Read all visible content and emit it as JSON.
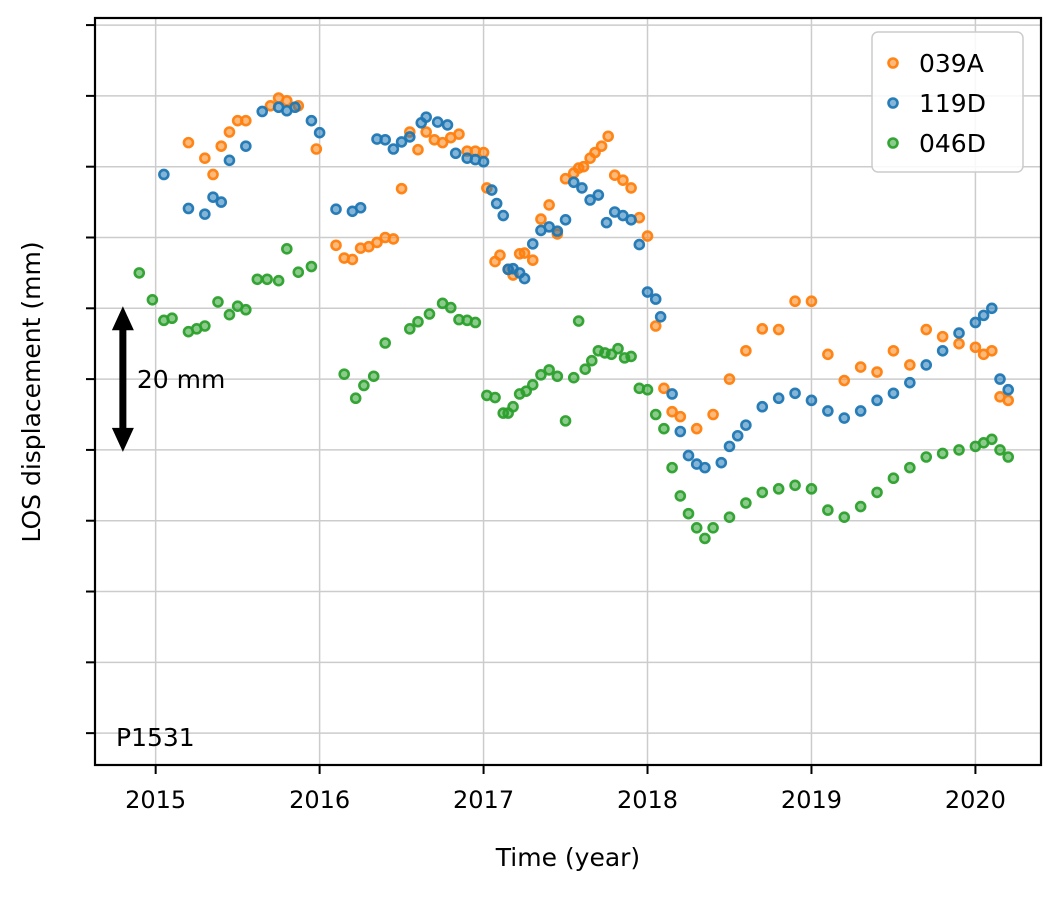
{
  "chart_data": {
    "type": "scatter",
    "xlabel": "Time (year)",
    "ylabel": "LOS displacement (mm)",
    "xlim": [
      2014.63,
      2020.4
    ],
    "ylim": [
      -89.5,
      16
    ],
    "x_ticks": [
      2015,
      2016,
      2017,
      2018,
      2019,
      2020
    ],
    "x_tick_labels": [
      "2015",
      "2016",
      "2017",
      "2018",
      "2019",
      "2020"
    ],
    "y_ticks": [
      -85,
      -75,
      -65,
      -55,
      -45,
      -35,
      -25,
      -15,
      -5,
      5,
      15
    ],
    "y_tick_labels_shown": false,
    "grid": true,
    "legend_position": "top-right",
    "annotation_text": "P1531",
    "scale_bar": {
      "label": "20 mm",
      "y_from": -45,
      "y_to": -25,
      "x": 2014.8
    },
    "series": [
      {
        "name": "039A",
        "color": "#ff7f0e",
        "points": [
          [
            2015.2,
            -1.6
          ],
          [
            2015.3,
            -3.8
          ],
          [
            2015.35,
            -6.1
          ],
          [
            2015.4,
            -2.1
          ],
          [
            2015.45,
            -0.1
          ],
          [
            2015.5,
            1.5
          ],
          [
            2015.55,
            1.5
          ],
          [
            2015.7,
            3.6
          ],
          [
            2015.75,
            4.7
          ],
          [
            2015.8,
            4.3
          ],
          [
            2015.87,
            3.6
          ],
          [
            2015.98,
            -2.5
          ],
          [
            2016.1,
            -16.1
          ],
          [
            2016.15,
            -17.9
          ],
          [
            2016.2,
            -18.1
          ],
          [
            2016.25,
            -16.5
          ],
          [
            2016.3,
            -16.3
          ],
          [
            2016.35,
            -15.7
          ],
          [
            2016.4,
            -15.0
          ],
          [
            2016.45,
            -15.2
          ],
          [
            2016.5,
            -8.1
          ],
          [
            2016.55,
            -0.1
          ],
          [
            2016.6,
            -2.6
          ],
          [
            2016.65,
            -0.1
          ],
          [
            2016.7,
            -1.2
          ],
          [
            2016.75,
            -1.6
          ],
          [
            2016.8,
            -0.9
          ],
          [
            2016.85,
            -0.4
          ],
          [
            2016.9,
            -2.8
          ],
          [
            2016.95,
            -2.8
          ],
          [
            2017.0,
            -3.0
          ],
          [
            2017.02,
            -8.0
          ],
          [
            2017.07,
            -18.4
          ],
          [
            2017.1,
            -17.5
          ],
          [
            2017.15,
            -19.5
          ],
          [
            2017.18,
            -20.3
          ],
          [
            2017.22,
            -17.3
          ],
          [
            2017.25,
            -17.2
          ],
          [
            2017.3,
            -18.2
          ],
          [
            2017.35,
            -12.4
          ],
          [
            2017.4,
            -10.4
          ],
          [
            2017.45,
            -14.5
          ],
          [
            2017.5,
            -6.7
          ],
          [
            2017.55,
            -5.9
          ],
          [
            2017.58,
            -5.2
          ],
          [
            2017.61,
            -5.0
          ],
          [
            2017.65,
            -3.8
          ],
          [
            2017.68,
            -3.0
          ],
          [
            2017.72,
            -2.1
          ],
          [
            2017.76,
            -0.7
          ],
          [
            2017.8,
            -6.2
          ],
          [
            2017.85,
            -6.9
          ],
          [
            2017.9,
            -8.0
          ],
          [
            2017.95,
            -12.2
          ],
          [
            2018.0,
            -14.8
          ],
          [
            2018.05,
            -27.5
          ],
          [
            2018.1,
            -36.3
          ],
          [
            2018.15,
            -39.6
          ],
          [
            2018.2,
            -40.3
          ],
          [
            2018.3,
            -42.0
          ],
          [
            2018.4,
            -40.0
          ],
          [
            2018.5,
            -35.0
          ],
          [
            2018.6,
            -31.0
          ],
          [
            2018.7,
            -27.9
          ],
          [
            2018.8,
            -28.0
          ],
          [
            2018.9,
            -24.0
          ],
          [
            2019.0,
            -24.0
          ],
          [
            2019.1,
            -31.5
          ],
          [
            2019.2,
            -35.2
          ],
          [
            2019.3,
            -33.3
          ],
          [
            2019.4,
            -34.0
          ],
          [
            2019.5,
            -31.0
          ],
          [
            2019.6,
            -33.0
          ],
          [
            2019.7,
            -28.0
          ],
          [
            2019.8,
            -29.0
          ],
          [
            2019.9,
            -30.0
          ],
          [
            2020.0,
            -30.5
          ],
          [
            2020.05,
            -31.5
          ],
          [
            2020.1,
            -31.0
          ],
          [
            2020.15,
            -37.5
          ],
          [
            2020.2,
            -38.0
          ]
        ]
      },
      {
        "name": "119D",
        "color": "#1f77b4",
        "points": [
          [
            2015.05,
            -6.1
          ],
          [
            2015.2,
            -10.9
          ],
          [
            2015.3,
            -11.7
          ],
          [
            2015.35,
            -9.3
          ],
          [
            2015.4,
            -10.0
          ],
          [
            2015.45,
            -4.1
          ],
          [
            2015.55,
            -2.1
          ],
          [
            2015.65,
            2.8
          ],
          [
            2015.75,
            3.4
          ],
          [
            2015.8,
            2.9
          ],
          [
            2015.85,
            3.4
          ],
          [
            2015.95,
            1.5
          ],
          [
            2016.0,
            -0.2
          ],
          [
            2016.1,
            -11.0
          ],
          [
            2016.2,
            -11.3
          ],
          [
            2016.25,
            -10.8
          ],
          [
            2016.35,
            -1.1
          ],
          [
            2016.4,
            -1.2
          ],
          [
            2016.45,
            -2.5
          ],
          [
            2016.5,
            -1.5
          ],
          [
            2016.55,
            -0.8
          ],
          [
            2016.62,
            1.2
          ],
          [
            2016.65,
            2.0
          ],
          [
            2016.72,
            1.3
          ],
          [
            2016.78,
            0.9
          ],
          [
            2016.83,
            -3.1
          ],
          [
            2016.9,
            -3.8
          ],
          [
            2016.95,
            -4.0
          ],
          [
            2017.0,
            -4.3
          ],
          [
            2017.05,
            -8.3
          ],
          [
            2017.08,
            -10.2
          ],
          [
            2017.12,
            -11.9
          ],
          [
            2017.15,
            -19.5
          ],
          [
            2017.18,
            -19.4
          ],
          [
            2017.22,
            -20.0
          ],
          [
            2017.25,
            -20.8
          ],
          [
            2017.3,
            -15.9
          ],
          [
            2017.35,
            -14.0
          ],
          [
            2017.4,
            -13.5
          ],
          [
            2017.45,
            -14.1
          ],
          [
            2017.5,
            -12.5
          ],
          [
            2017.55,
            -7.2
          ],
          [
            2017.6,
            -8.0
          ],
          [
            2017.65,
            -9.7
          ],
          [
            2017.7,
            -9.0
          ],
          [
            2017.75,
            -12.9
          ],
          [
            2017.8,
            -11.4
          ],
          [
            2017.85,
            -11.9
          ],
          [
            2017.9,
            -12.5
          ],
          [
            2017.95,
            -16.0
          ],
          [
            2018.0,
            -22.7
          ],
          [
            2018.05,
            -23.7
          ],
          [
            2018.08,
            -26.2
          ],
          [
            2018.15,
            -37.1
          ],
          [
            2018.2,
            -42.4
          ],
          [
            2018.25,
            -45.8
          ],
          [
            2018.3,
            -47.0
          ],
          [
            2018.35,
            -47.5
          ],
          [
            2018.45,
            -46.8
          ],
          [
            2018.5,
            -44.5
          ],
          [
            2018.55,
            -43.0
          ],
          [
            2018.6,
            -41.5
          ],
          [
            2018.7,
            -38.9
          ],
          [
            2018.8,
            -37.7
          ],
          [
            2018.9,
            -37.0
          ],
          [
            2019.0,
            -38.0
          ],
          [
            2019.1,
            -39.5
          ],
          [
            2019.2,
            -40.5
          ],
          [
            2019.3,
            -39.5
          ],
          [
            2019.4,
            -38.0
          ],
          [
            2019.5,
            -37.0
          ],
          [
            2019.6,
            -35.5
          ],
          [
            2019.7,
            -33.0
          ],
          [
            2019.8,
            -31.0
          ],
          [
            2019.9,
            -28.5
          ],
          [
            2020.0,
            -27.0
          ],
          [
            2020.05,
            -26.0
          ],
          [
            2020.1,
            -25.0
          ],
          [
            2020.15,
            -35.0
          ],
          [
            2020.2,
            -36.5
          ]
        ]
      },
      {
        "name": "046D",
        "color": "#2ca02c",
        "points": [
          [
            2014.9,
            -20.0
          ],
          [
            2014.98,
            -23.8
          ],
          [
            2015.05,
            -26.7
          ],
          [
            2015.1,
            -26.4
          ],
          [
            2015.2,
            -28.3
          ],
          [
            2015.25,
            -27.9
          ],
          [
            2015.3,
            -27.5
          ],
          [
            2015.38,
            -24.1
          ],
          [
            2015.45,
            -25.9
          ],
          [
            2015.5,
            -24.7
          ],
          [
            2015.55,
            -25.2
          ],
          [
            2015.62,
            -20.9
          ],
          [
            2015.68,
            -20.9
          ],
          [
            2015.75,
            -21.1
          ],
          [
            2015.8,
            -16.6
          ],
          [
            2015.87,
            -19.9
          ],
          [
            2015.95,
            -19.1
          ],
          [
            2016.15,
            -34.3
          ],
          [
            2016.22,
            -37.7
          ],
          [
            2016.27,
            -35.9
          ],
          [
            2016.33,
            -34.6
          ],
          [
            2016.4,
            -29.9
          ],
          [
            2016.55,
            -27.9
          ],
          [
            2016.6,
            -26.9
          ],
          [
            2016.67,
            -25.8
          ],
          [
            2016.75,
            -24.3
          ],
          [
            2016.8,
            -24.9
          ],
          [
            2016.85,
            -26.6
          ],
          [
            2016.9,
            -26.7
          ],
          [
            2016.95,
            -27.0
          ],
          [
            2017.02,
            -37.3
          ],
          [
            2017.07,
            -37.6
          ],
          [
            2017.12,
            -39.8
          ],
          [
            2017.15,
            -39.8
          ],
          [
            2017.18,
            -38.9
          ],
          [
            2017.22,
            -37.1
          ],
          [
            2017.26,
            -36.7
          ],
          [
            2017.3,
            -35.8
          ],
          [
            2017.35,
            -34.4
          ],
          [
            2017.4,
            -33.7
          ],
          [
            2017.45,
            -34.6
          ],
          [
            2017.5,
            -40.9
          ],
          [
            2017.55,
            -34.8
          ],
          [
            2017.58,
            -26.8
          ],
          [
            2017.62,
            -33.6
          ],
          [
            2017.66,
            -32.4
          ],
          [
            2017.7,
            -31.0
          ],
          [
            2017.74,
            -31.3
          ],
          [
            2017.78,
            -31.5
          ],
          [
            2017.82,
            -30.7
          ],
          [
            2017.86,
            -32.0
          ],
          [
            2017.9,
            -31.8
          ],
          [
            2017.95,
            -36.3
          ],
          [
            2018.0,
            -36.5
          ],
          [
            2018.05,
            -40.0
          ],
          [
            2018.1,
            -42.0
          ],
          [
            2018.15,
            -47.5
          ],
          [
            2018.2,
            -51.5
          ],
          [
            2018.25,
            -54.0
          ],
          [
            2018.3,
            -56.0
          ],
          [
            2018.35,
            -57.5
          ],
          [
            2018.4,
            -56.0
          ],
          [
            2018.5,
            -54.5
          ],
          [
            2018.6,
            -52.5
          ],
          [
            2018.7,
            -51.0
          ],
          [
            2018.8,
            -50.5
          ],
          [
            2018.9,
            -50.0
          ],
          [
            2019.0,
            -50.5
          ],
          [
            2019.1,
            -53.5
          ],
          [
            2019.2,
            -54.5
          ],
          [
            2019.3,
            -53.0
          ],
          [
            2019.4,
            -51.0
          ],
          [
            2019.5,
            -49.0
          ],
          [
            2019.6,
            -47.5
          ],
          [
            2019.7,
            -46.0
          ],
          [
            2019.8,
            -45.5
          ],
          [
            2019.9,
            -45.0
          ],
          [
            2020.0,
            -44.5
          ],
          [
            2020.05,
            -44.0
          ],
          [
            2020.1,
            -43.5
          ],
          [
            2020.15,
            -45.0
          ],
          [
            2020.2,
            -46.0
          ]
        ]
      }
    ]
  }
}
